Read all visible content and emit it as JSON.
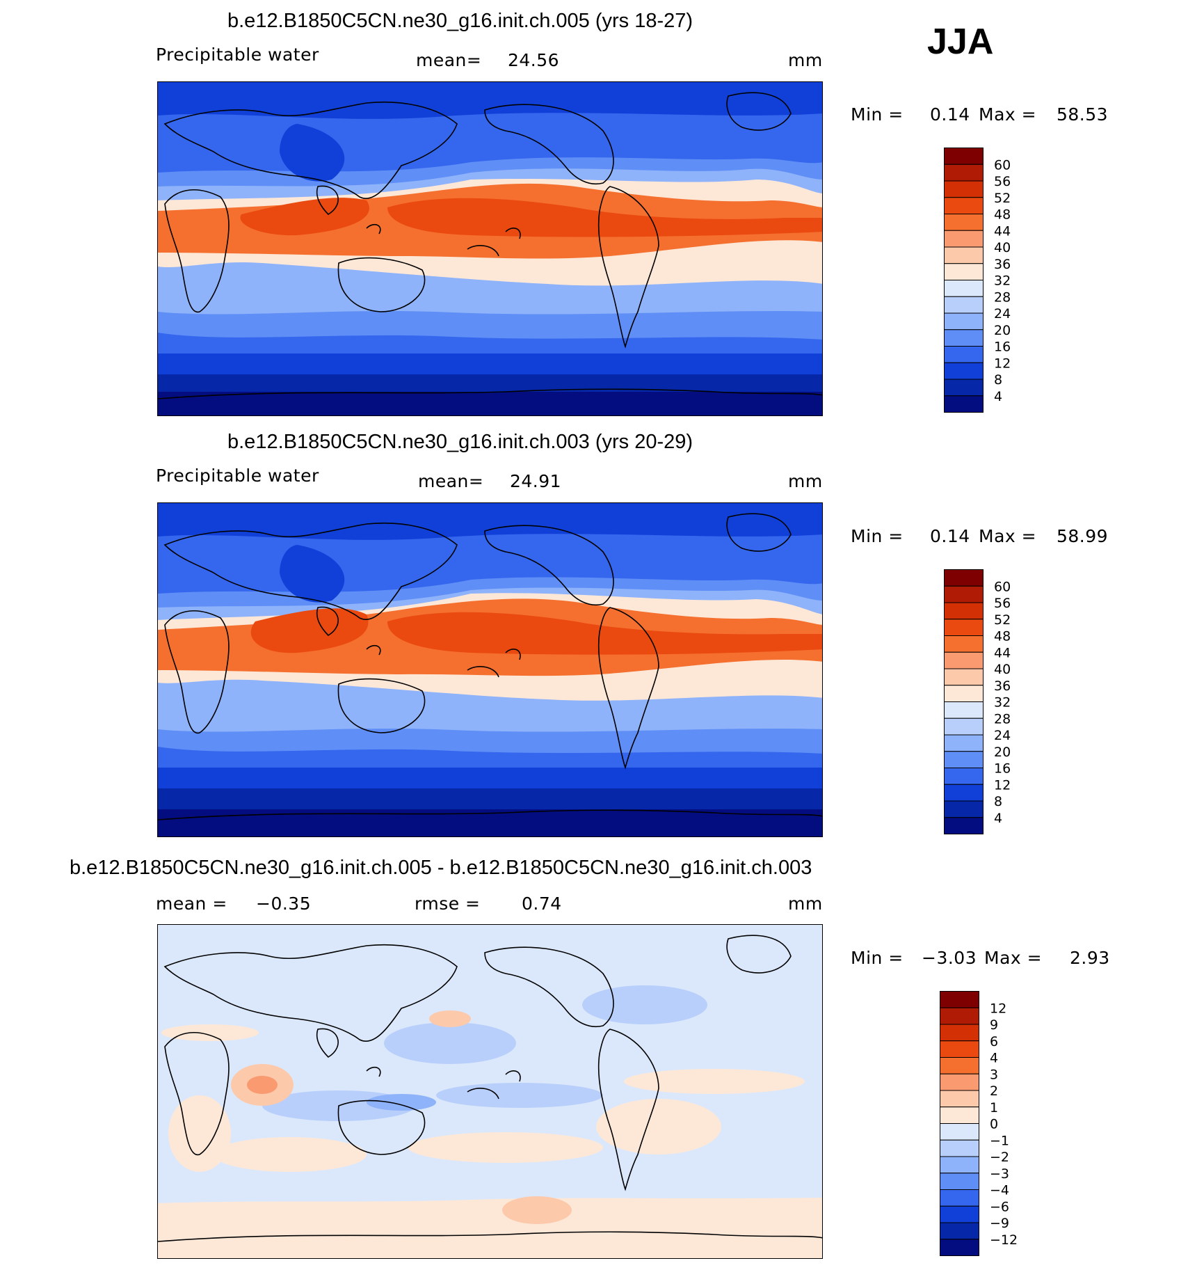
{
  "season": "JJA",
  "variable": "Precipitable water",
  "units": "mm",
  "panels": [
    {
      "title": "b.e12.B1850C5CN.ne30_g16.init.ch.005 (yrs 18-27)",
      "mean_label": "mean=",
      "mean": "24.56",
      "min_label": "Min =",
      "min": "0.14",
      "max_label": "Max =",
      "max": "58.53"
    },
    {
      "title": "b.e12.B1850C5CN.ne30_g16.init.ch.003 (yrs 20-29)",
      "mean_label": "mean=",
      "mean": "24.91",
      "min_label": "Min =",
      "min": "0.14",
      "max_label": "Max =",
      "max": "58.99"
    },
    {
      "title": "b.e12.B1850C5CN.ne30_g16.init.ch.005 - b.e12.B1850C5CN.ne30_g16.init.ch.003",
      "mean_label": "mean =",
      "mean": "−0.35",
      "rmse_label": "rmse =",
      "rmse": "0.74",
      "min_label": "Min =",
      "min": "−3.03",
      "max_label": "Max =",
      "max": "2.93"
    }
  ],
  "colorbars": {
    "field": {
      "labels": [
        "60",
        "56",
        "52",
        "48",
        "44",
        "40",
        "36",
        "32",
        "28",
        "24",
        "20",
        "16",
        "12",
        "8",
        "4"
      ],
      "colors": [
        "#7f0000",
        "#b01b05",
        "#d43006",
        "#ea4a10",
        "#f5702f",
        "#f99a70",
        "#fdc9ab",
        "#fde8d8",
        "#dbe8fb",
        "#b8cffb",
        "#8eb3fa",
        "#5f8ef6",
        "#3566ee",
        "#1040d8",
        "#0527a8",
        "#030d80"
      ]
    },
    "diff": {
      "labels": [
        "12",
        "9",
        "6",
        "4",
        "3",
        "2",
        "1",
        "0",
        "−1",
        "−2",
        "−3",
        "−4",
        "−6",
        "−9",
        "−12"
      ],
      "colors": [
        "#7f0000",
        "#b01b05",
        "#d43006",
        "#ea4a10",
        "#f5702f",
        "#f99a70",
        "#fdc9ab",
        "#fde8d8",
        "#dbe8fb",
        "#b8cffb",
        "#8eb3fa",
        "#5f8ef6",
        "#3566ee",
        "#1040d8",
        "#0527a8",
        "#030d80"
      ]
    }
  },
  "colors": {
    "deep_blue": "#030d80",
    "mid_blue": "#3566ee",
    "light_blue": "#b8cffb",
    "cream": "#fde8d8",
    "orange": "#ea4a10",
    "dark_red": "#b01b05",
    "diff_background": "#dbe8fb"
  }
}
